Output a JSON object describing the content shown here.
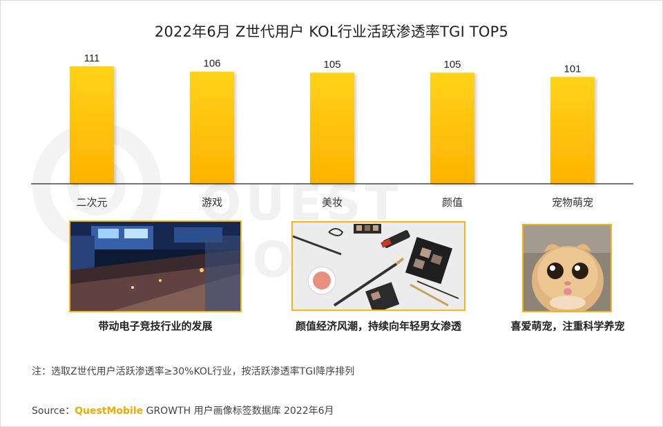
{
  "title": "2022年6月 Z世代用户 KOL行业活跃渗透率TGI TOP5",
  "watermark": "QUEST MOBILE",
  "chart_data": {
    "type": "bar",
    "categories": [
      "二次元",
      "游戏",
      "美妆",
      "颜值",
      "宠物萌宠"
    ],
    "values": [
      111,
      106,
      105,
      105,
      101
    ],
    "data_labels": [
      "111",
      "106",
      "105",
      "105",
      "101"
    ],
    "ylim": [
      0,
      111
    ],
    "grid": false,
    "bar_color_top": "#ffd21a",
    "bar_color_bottom": "#ffb300"
  },
  "highlights": [
    {
      "caption": "带动电子竞技行业的发展",
      "image": "esports-arena-photo"
    },
    {
      "caption": "颜值经济风潮，持续向年轻男女渗透",
      "image": "makeup-cosmetics-photo"
    },
    {
      "caption": "喜爱萌宠，注重科学养宠",
      "image": "cute-cat-photo"
    }
  ],
  "note": "注：选取Z世代用户活跃渗透率≥30%KOL行业，按活跃渗透率TGI降序排列",
  "source": {
    "label": "Source：",
    "brand": "QuestMobile",
    "text": " GROWTH 用户画像标签数据库 2022年6月"
  },
  "colors": {
    "accent": "#f2b51d",
    "brand": "#f2a900"
  }
}
